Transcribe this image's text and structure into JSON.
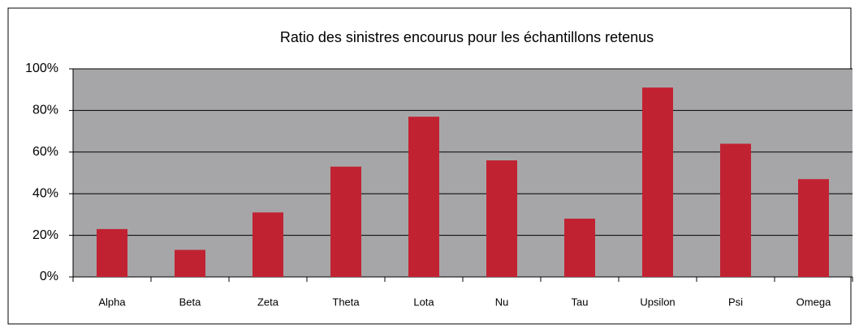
{
  "chart_data": {
    "type": "bar",
    "title": "Ratio des sinistres encourus pour les échantillons retenus",
    "categories": [
      "Alpha",
      "Beta",
      "Zeta",
      "Theta",
      "Lota",
      "Nu",
      "Tau",
      "Upsilon",
      "Psi",
      "Omega"
    ],
    "values": [
      23,
      13,
      31,
      53,
      77,
      56,
      28,
      91,
      64,
      47
    ],
    "color": "#c12232",
    "ylim": [
      0,
      100
    ],
    "yticks": [
      {
        "value": 0,
        "label": "0%"
      },
      {
        "value": 20,
        "label": "20%"
      },
      {
        "value": 40,
        "label": "40%"
      },
      {
        "value": 60,
        "label": "60%"
      },
      {
        "value": 80,
        "label": "80%"
      },
      {
        "value": 100,
        "label": "100%"
      }
    ],
    "grid": true
  }
}
